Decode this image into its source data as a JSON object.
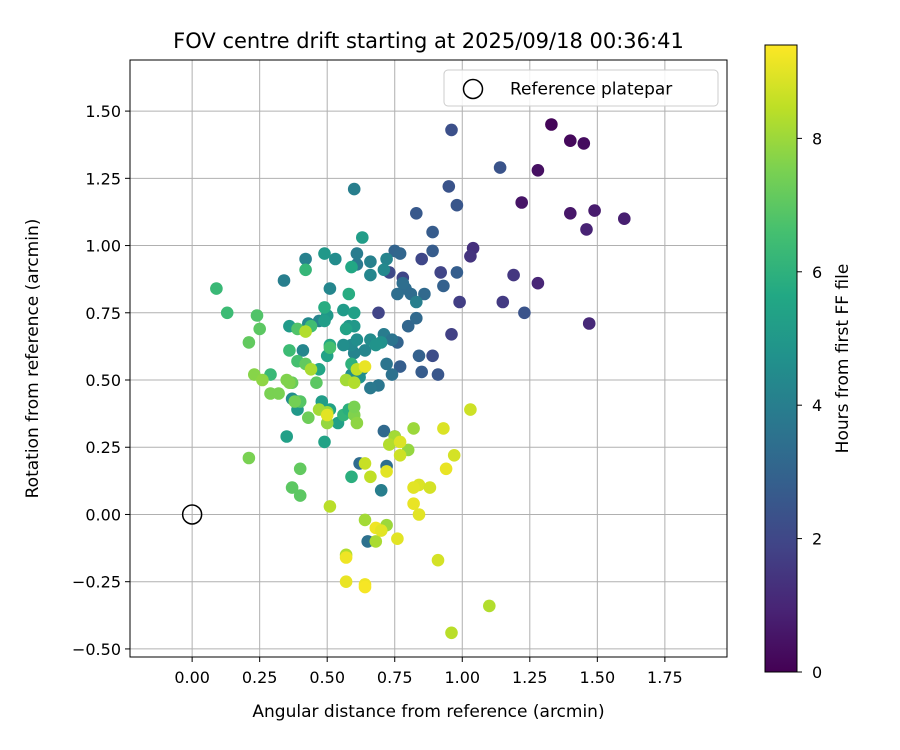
{
  "chart_data": {
    "type": "scatter",
    "title": "FOV centre drift starting at 2025/09/18 00:36:41",
    "xlabel": "Angular distance from reference (arcmin)",
    "ylabel": "Rotation from reference (arcmin)",
    "xlim": [
      -0.23,
      1.98
    ],
    "ylim": [
      -0.53,
      1.69
    ],
    "xticks": [
      0.0,
      0.25,
      0.5,
      0.75,
      1.0,
      1.25,
      1.5,
      1.75
    ],
    "xtick_labels": [
      "0.00",
      "0.25",
      "0.50",
      "0.75",
      "1.00",
      "1.25",
      "1.50",
      "1.75"
    ],
    "yticks": [
      -0.5,
      -0.25,
      0.0,
      0.25,
      0.5,
      0.75,
      1.0,
      1.25,
      1.5
    ],
    "ytick_labels": [
      "−0.50",
      "−0.25",
      "0.00",
      "0.25",
      "0.50",
      "0.75",
      "1.00",
      "1.25",
      "1.50"
    ],
    "grid": true,
    "legend": {
      "placement": "top-right",
      "label": "Reference platepar"
    },
    "reference_point": {
      "x": 0.0,
      "y": 0.0
    },
    "colorbar": {
      "label": "Hours from first FF file",
      "min": 0,
      "max": 9.4,
      "ticks": [
        0,
        2,
        4,
        6,
        8
      ],
      "tick_labels": [
        "0",
        "2",
        "4",
        "6",
        "8"
      ],
      "colormap": "viridis"
    },
    "points": [
      [
        1.33,
        1.45,
        0.1
      ],
      [
        1.4,
        1.39,
        0.2
      ],
      [
        1.45,
        1.38,
        0.3
      ],
      [
        1.28,
        1.28,
        0.4
      ],
      [
        1.22,
        1.16,
        0.5
      ],
      [
        1.4,
        1.12,
        0.6
      ],
      [
        1.49,
        1.13,
        0.7
      ],
      [
        1.6,
        1.1,
        0.8
      ],
      [
        1.46,
        1.06,
        0.9
      ],
      [
        1.28,
        0.86,
        1.0
      ],
      [
        1.47,
        0.71,
        1.1
      ],
      [
        1.04,
        0.99,
        1.3
      ],
      [
        1.03,
        0.96,
        1.4
      ],
      [
        1.19,
        0.89,
        1.5
      ],
      [
        1.15,
        0.79,
        1.6
      ],
      [
        0.99,
        0.79,
        1.7
      ],
      [
        0.96,
        0.67,
        1.8
      ],
      [
        0.92,
        0.9,
        1.9
      ],
      [
        0.85,
        0.95,
        2.0
      ],
      [
        0.78,
        0.88,
        2.0
      ],
      [
        0.73,
        0.9,
        2.1
      ],
      [
        0.69,
        0.75,
        1.9
      ],
      [
        0.96,
        1.43,
        2.3
      ],
      [
        1.14,
        1.29,
        2.4
      ],
      [
        0.95,
        1.22,
        2.4
      ],
      [
        0.98,
        1.15,
        2.5
      ],
      [
        0.83,
        1.12,
        2.6
      ],
      [
        1.23,
        0.75,
        2.4
      ],
      [
        0.89,
        1.05,
        2.7
      ],
      [
        0.89,
        0.98,
        2.7
      ],
      [
        0.98,
        0.9,
        2.8
      ],
      [
        0.93,
        0.85,
        2.9
      ],
      [
        0.89,
        0.59,
        2.2
      ],
      [
        0.91,
        0.52,
        2.5
      ],
      [
        0.85,
        0.53,
        2.7
      ],
      [
        0.84,
        0.59,
        2.9
      ],
      [
        0.77,
        0.55,
        2.8
      ],
      [
        0.76,
        0.64,
        3.0
      ],
      [
        0.8,
        0.7,
        3.1
      ],
      [
        0.83,
        0.73,
        3.2
      ],
      [
        0.75,
        0.98,
        3.0
      ],
      [
        0.77,
        0.97,
        3.1
      ],
      [
        0.86,
        0.82,
        3.2
      ],
      [
        0.81,
        0.82,
        3.3
      ],
      [
        0.79,
        0.84,
        3.3
      ],
      [
        0.78,
        0.86,
        3.4
      ],
      [
        0.76,
        0.82,
        3.4
      ],
      [
        0.74,
        0.52,
        3.5
      ],
      [
        0.72,
        0.56,
        3.6
      ],
      [
        0.69,
        0.48,
        3.7
      ],
      [
        0.66,
        0.47,
        3.8
      ],
      [
        0.71,
        0.67,
        3.9
      ],
      [
        0.74,
        0.65,
        3.6
      ],
      [
        0.71,
        0.31,
        3.2
      ],
      [
        0.75,
        0.29,
        3.0
      ],
      [
        0.72,
        0.18,
        3.4
      ],
      [
        0.62,
        0.19,
        3.3
      ],
      [
        0.65,
        -0.1,
        3.5
      ],
      [
        0.7,
        0.09,
        4.0
      ],
      [
        0.6,
        1.21,
        4.0
      ],
      [
        0.83,
        0.79,
        4.0
      ],
      [
        0.61,
        0.93,
        3.8
      ],
      [
        0.61,
        0.97,
        3.9
      ],
      [
        0.66,
        0.94,
        4.1
      ],
      [
        0.72,
        0.95,
        4.2
      ],
      [
        0.66,
        0.89,
        4.3
      ],
      [
        0.71,
        0.91,
        4.4
      ],
      [
        0.53,
        0.95,
        4.5
      ],
      [
        0.42,
        0.95,
        4.1
      ],
      [
        0.34,
        0.87,
        4.0
      ],
      [
        0.51,
        0.84,
        4.3
      ],
      [
        0.47,
        0.72,
        4.2
      ],
      [
        0.43,
        0.71,
        4.4
      ],
      [
        0.41,
        0.61,
        4.3
      ],
      [
        0.64,
        0.61,
        4.3
      ],
      [
        0.6,
        0.6,
        4.2
      ],
      [
        0.59,
        0.63,
        4.4
      ],
      [
        0.56,
        0.63,
        4.6
      ],
      [
        0.66,
        0.65,
        4.5
      ],
      [
        0.7,
        0.64,
        4.7
      ],
      [
        0.68,
        0.63,
        4.8
      ],
      [
        0.61,
        0.65,
        4.6
      ],
      [
        0.58,
        0.7,
        4.9
      ],
      [
        0.6,
        0.7,
        5.0
      ],
      [
        0.59,
        0.52,
        4.6
      ],
      [
        0.62,
        0.51,
        4.7
      ],
      [
        0.63,
        0.54,
        4.5
      ],
      [
        0.36,
        0.7,
        5.1
      ],
      [
        0.5,
        0.74,
        5.0
      ],
      [
        0.49,
        0.72,
        5.2
      ],
      [
        0.56,
        0.76,
        5.1
      ],
      [
        0.6,
        0.75,
        5.3
      ],
      [
        0.57,
        0.69,
        5.4
      ],
      [
        0.63,
        1.03,
        5.2
      ],
      [
        0.5,
        0.59,
        5.4
      ],
      [
        0.47,
        0.54,
        5.5
      ],
      [
        0.51,
        0.63,
        5.6
      ],
      [
        0.37,
        0.43,
        4.6
      ],
      [
        0.39,
        0.42,
        4.8
      ],
      [
        0.39,
        0.39,
        5.0
      ],
      [
        0.48,
        0.42,
        5.2
      ],
      [
        0.51,
        0.39,
        5.4
      ],
      [
        0.35,
        0.29,
        5.3
      ],
      [
        0.49,
        0.27,
        5.4
      ],
      [
        0.54,
        0.34,
        5.3
      ],
      [
        0.49,
        0.97,
        5.0
      ],
      [
        0.59,
        0.92,
        5.6
      ],
      [
        0.58,
        0.82,
        5.8
      ],
      [
        0.49,
        0.77,
        5.8
      ],
      [
        0.59,
        0.56,
        6.0
      ],
      [
        0.56,
        0.37,
        6.1
      ],
      [
        0.58,
        0.39,
        5.9
      ],
      [
        0.59,
        0.14,
        5.9
      ],
      [
        0.42,
        0.91,
        6.2
      ],
      [
        0.09,
        0.84,
        6.3
      ],
      [
        0.13,
        0.75,
        6.4
      ],
      [
        0.29,
        0.52,
        6.3
      ],
      [
        0.36,
        0.61,
        6.4
      ],
      [
        0.44,
        0.7,
        6.5
      ],
      [
        0.39,
        0.57,
        6.6
      ],
      [
        0.51,
        0.62,
        6.6
      ],
      [
        0.24,
        0.74,
        6.8
      ],
      [
        0.25,
        0.69,
        7.0
      ],
      [
        0.21,
        0.64,
        7.1
      ],
      [
        0.39,
        0.69,
        6.8
      ],
      [
        0.4,
        0.42,
        6.9
      ],
      [
        0.46,
        0.49,
        7.0
      ],
      [
        0.42,
        0.56,
        7.1
      ],
      [
        0.37,
        0.1,
        7.0
      ],
      [
        0.4,
        0.17,
        7.1
      ],
      [
        0.4,
        0.07,
        7.0
      ],
      [
        0.37,
        0.49,
        7.2
      ],
      [
        0.43,
        0.36,
        7.3
      ],
      [
        0.38,
        0.42,
        7.4
      ],
      [
        0.29,
        0.45,
        7.5
      ],
      [
        0.35,
        0.5,
        7.6
      ],
      [
        0.32,
        0.45,
        7.5
      ],
      [
        0.36,
        0.49,
        7.6
      ],
      [
        0.23,
        0.52,
        7.7
      ],
      [
        0.26,
        0.5,
        7.8
      ],
      [
        0.21,
        0.21,
        7.5
      ],
      [
        0.6,
        0.37,
        7.6
      ],
      [
        0.6,
        0.4,
        7.5
      ],
      [
        0.61,
        0.34,
        7.8
      ],
      [
        0.5,
        0.34,
        7.9
      ],
      [
        0.5,
        0.38,
        8.0
      ],
      [
        0.47,
        0.39,
        8.1
      ],
      [
        0.44,
        0.54,
        8.2
      ],
      [
        0.42,
        0.68,
        8.3
      ],
      [
        0.57,
        0.5,
        8.1
      ],
      [
        0.6,
        0.49,
        8.3
      ],
      [
        0.61,
        0.54,
        8.5
      ],
      [
        0.8,
        0.24,
        7.9
      ],
      [
        0.82,
        0.32,
        8.0
      ],
      [
        0.75,
        0.29,
        8.1
      ],
      [
        0.73,
        0.26,
        8.3
      ],
      [
        0.72,
        -0.04,
        8.0
      ],
      [
        0.64,
        -0.02,
        8.1
      ],
      [
        0.68,
        -0.1,
        8.2
      ],
      [
        0.57,
        -0.15,
        8.3
      ],
      [
        0.51,
        0.03,
        8.4
      ],
      [
        0.64,
        0.19,
        8.6
      ],
      [
        0.66,
        0.14,
        8.5
      ],
      [
        1.1,
        -0.34,
        8.3
      ],
      [
        0.96,
        -0.44,
        8.4
      ],
      [
        1.03,
        0.39,
        8.7
      ],
      [
        0.93,
        0.32,
        8.9
      ],
      [
        0.97,
        0.22,
        8.8
      ],
      [
        0.77,
        0.27,
        8.9
      ],
      [
        0.77,
        0.22,
        8.7
      ],
      [
        0.72,
        0.16,
        9.0
      ],
      [
        0.84,
        0.11,
        8.9
      ],
      [
        0.82,
        0.1,
        9.0
      ],
      [
        0.88,
        0.1,
        8.8
      ],
      [
        0.82,
        0.04,
        9.1
      ],
      [
        0.84,
        0.0,
        9.0
      ],
      [
        0.94,
        0.17,
        9.1
      ],
      [
        0.91,
        -0.17,
        8.8
      ],
      [
        0.76,
        -0.09,
        9.0
      ],
      [
        0.68,
        -0.05,
        9.2
      ],
      [
        0.7,
        -0.06,
        9.0
      ],
      [
        0.57,
        -0.16,
        9.2
      ],
      [
        0.57,
        -0.25,
        9.1
      ],
      [
        0.64,
        -0.26,
        9.2
      ],
      [
        0.64,
        -0.27,
        9.3
      ],
      [
        0.5,
        0.37,
        9.0
      ],
      [
        0.64,
        0.55,
        9.1
      ]
    ]
  }
}
